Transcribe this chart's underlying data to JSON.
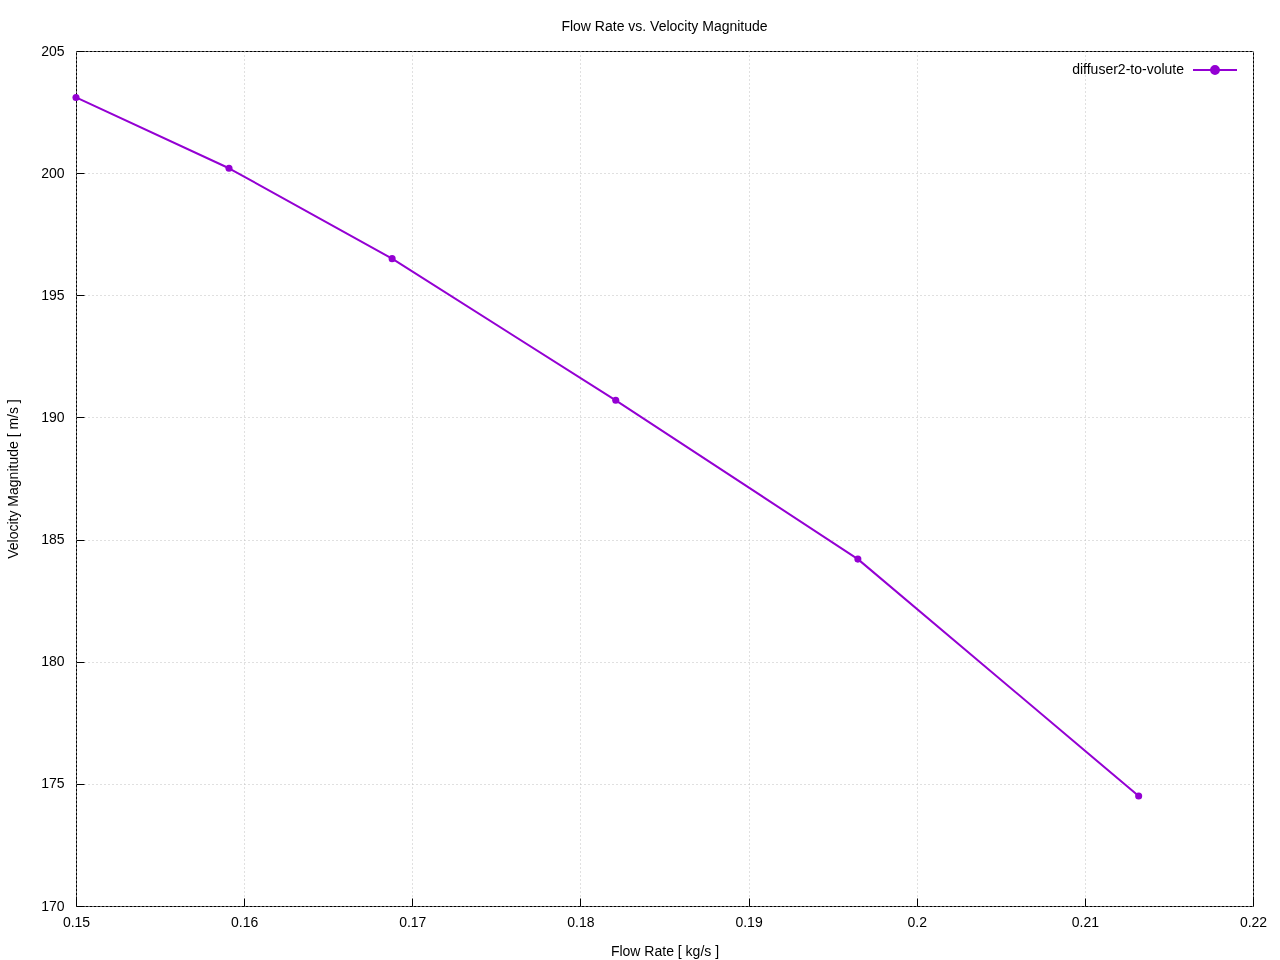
{
  "chart_data": {
    "type": "line",
    "title": "Flow Rate vs. Velocity Magnitude",
    "xlabel": "Flow Rate [ kg/s ]",
    "ylabel": "Velocity Magnitude [ m/s ]",
    "x": [
      0.15,
      0.1591,
      0.1688,
      0.1821,
      0.1965,
      0.2132
    ],
    "series": [
      {
        "name": "diffuser2-to-volute",
        "color": "#9400d3",
        "values": [
          203.1,
          200.2,
          196.5,
          190.7,
          184.2,
          174.5
        ]
      }
    ],
    "xlim": [
      0.15,
      0.22
    ],
    "xticks": [
      0.15,
      0.16,
      0.17,
      0.18,
      0.19,
      0.2,
      0.21,
      0.22
    ],
    "ylim": [
      170,
      205
    ],
    "yticks": [
      170,
      175,
      180,
      185,
      190,
      195,
      200,
      205
    ],
    "grid": true,
    "legend": "top right",
    "marker": "circle",
    "line_style": "solid"
  }
}
